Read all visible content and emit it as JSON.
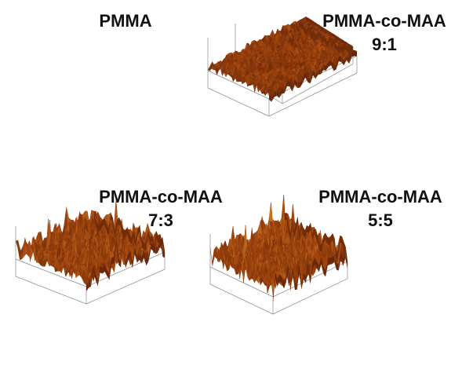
{
  "panels": [
    {
      "id": "pmma",
      "title_lines": [
        "PMMA"
      ],
      "roughness_level": 0.15,
      "peak_spikes": 0.0
    },
    {
      "id": "pmma-co-maa-9-1",
      "title_lines": [
        "PMMA-co-MAA",
        "9:1"
      ],
      "roughness_level": 0.55,
      "peak_spikes": 0.25
    },
    {
      "id": "pmma-co-maa-7-3",
      "title_lines": [
        "PMMA-co-MAA",
        "7:3"
      ],
      "roughness_level": 0.85,
      "peak_spikes": 0.8
    },
    {
      "id": "pmma-co-maa-5-5",
      "title_lines": [
        "PMMA-co-MAA",
        "5:5"
      ],
      "roughness_level": 0.95,
      "peak_spikes": 0.7
    }
  ],
  "colors": {
    "surface_dark": "#5a1f05",
    "surface_mid": "#a4470f",
    "surface_light": "#e09a3a",
    "axis": "#8a8a8a",
    "title": "#111111"
  }
}
